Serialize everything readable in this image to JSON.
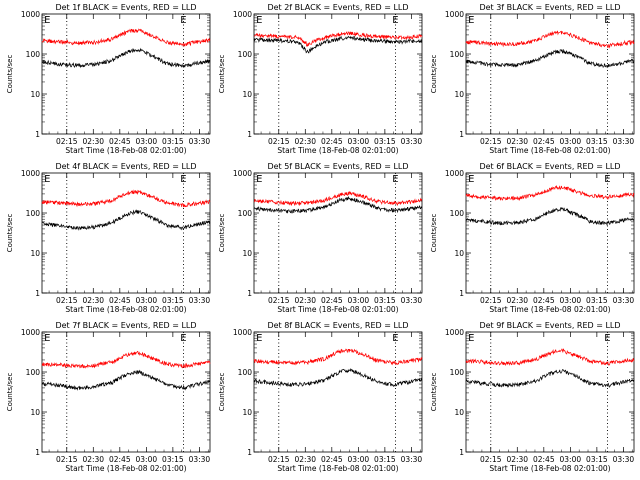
{
  "figure": {
    "colors": {
      "events": "#000000",
      "lld": "#ff0000",
      "axis": "#000000",
      "background": "#ffffff"
    }
  },
  "chart_data": [
    {
      "type": "line",
      "detector": "1f",
      "title": "Det 1f BLACK = Events, RED = LLD",
      "xlabel": "Start Time (18-Feb-08 02:01:00)",
      "ylabel": "Counts/sec",
      "x_ticks": [
        "02:15",
        "02:30",
        "02:45",
        "03:00",
        "03:15",
        "03:30"
      ],
      "y_ticks": [
        "1",
        "10",
        "100",
        "1000"
      ],
      "ylim": [
        1,
        1000
      ],
      "y_scale": "log",
      "x_range_minutes": [
        0,
        95
      ],
      "markers": [
        {
          "label": "E",
          "x_min": 3
        },
        {
          "label": "E",
          "x_min": 80
        }
      ],
      "dotted_lines_x_min": [
        14,
        80
      ],
      "series": [
        {
          "name": "LLD",
          "color": "#ff0000",
          "x_min": [
            0,
            10,
            20,
            30,
            40,
            50,
            55,
            60,
            70,
            80,
            90,
            95
          ],
          "values": [
            220,
            200,
            190,
            195,
            240,
            380,
            390,
            310,
            200,
            170,
            210,
            220
          ]
        },
        {
          "name": "Events",
          "color": "#000000",
          "x_min": [
            0,
            10,
            20,
            30,
            40,
            50,
            55,
            60,
            70,
            80,
            90,
            95
          ],
          "values": [
            65,
            55,
            52,
            55,
            70,
            120,
            125,
            100,
            58,
            50,
            62,
            68
          ]
        }
      ]
    },
    {
      "type": "line",
      "detector": "2f",
      "title": "Det 2f BLACK = Events, RED = LLD",
      "xlabel": "Start Time (18-Feb-08 02:01:00)",
      "ylabel": "Counts/sec",
      "x_ticks": [
        "02:15",
        "02:30",
        "02:45",
        "03:00",
        "03:15",
        "03:30"
      ],
      "y_ticks": [
        "1",
        "10",
        "100",
        "1000"
      ],
      "ylim": [
        1,
        1000
      ],
      "y_scale": "log",
      "x_range_minutes": [
        0,
        95
      ],
      "markers": [
        {
          "label": "E",
          "x_min": 3
        },
        {
          "label": "E",
          "x_min": 80
        }
      ],
      "dotted_lines_x_min": [
        14,
        80
      ],
      "series": [
        {
          "name": "LLD",
          "color": "#ff0000",
          "x_min": [
            0,
            10,
            20,
            25,
            30,
            40,
            50,
            55,
            60,
            70,
            80,
            90,
            95
          ],
          "values": [
            290,
            280,
            270,
            260,
            170,
            260,
            320,
            330,
            300,
            270,
            260,
            270,
            280
          ]
        },
        {
          "name": "Events",
          "color": "#000000",
          "x_min": [
            0,
            10,
            20,
            25,
            30,
            40,
            50,
            55,
            60,
            70,
            80,
            90,
            95
          ],
          "values": [
            230,
            220,
            210,
            200,
            110,
            200,
            250,
            260,
            235,
            210,
            200,
            210,
            215
          ]
        }
      ]
    },
    {
      "type": "line",
      "detector": "3f",
      "title": "Det 3f BLACK = Events, RED = LLD",
      "xlabel": "Start Time (18-Feb-08 02:01:00)",
      "ylabel": "Counts/sec",
      "x_ticks": [
        "02:15",
        "02:30",
        "02:45",
        "03:00",
        "03:15",
        "03:30"
      ],
      "y_ticks": [
        "1",
        "10",
        "100",
        "1000"
      ],
      "ylim": [
        1,
        1000
      ],
      "y_scale": "log",
      "x_range_minutes": [
        0,
        95
      ],
      "markers": [
        {
          "label": "E",
          "x_min": 3
        },
        {
          "label": "E",
          "x_min": 80
        }
      ],
      "dotted_lines_x_min": [
        14,
        80
      ],
      "series": [
        {
          "name": "LLD",
          "color": "#ff0000",
          "x_min": [
            0,
            10,
            20,
            30,
            40,
            50,
            55,
            60,
            70,
            80,
            90,
            95
          ],
          "values": [
            200,
            190,
            175,
            180,
            220,
            340,
            350,
            290,
            190,
            160,
            190,
            200
          ]
        },
        {
          "name": "Events",
          "color": "#000000",
          "x_min": [
            0,
            10,
            20,
            30,
            40,
            50,
            55,
            60,
            70,
            80,
            90,
            95
          ],
          "values": [
            65,
            58,
            52,
            55,
            68,
            110,
            118,
            95,
            58,
            50,
            62,
            68
          ]
        }
      ]
    },
    {
      "type": "line",
      "detector": "4f",
      "title": "Det 4f BLACK = Events, RED = LLD",
      "xlabel": "Start Time (18-Feb-08 02:01:00)",
      "ylabel": "Counts/sec",
      "x_ticks": [
        "02:15",
        "02:30",
        "02:45",
        "03:00",
        "03:15",
        "03:30"
      ],
      "y_ticks": [
        "1",
        "10",
        "100",
        "1000"
      ],
      "ylim": [
        1,
        1000
      ],
      "y_scale": "log",
      "x_range_minutes": [
        0,
        95
      ],
      "markers": [
        {
          "label": "E",
          "x_min": 3
        },
        {
          "label": "E",
          "x_min": 80
        }
      ],
      "dotted_lines_x_min": [
        14,
        80
      ],
      "series": [
        {
          "name": "LLD",
          "color": "#ff0000",
          "x_min": [
            0,
            10,
            20,
            30,
            40,
            50,
            55,
            60,
            70,
            80,
            90,
            95
          ],
          "values": [
            190,
            180,
            165,
            170,
            210,
            330,
            340,
            280,
            180,
            155,
            180,
            190
          ]
        },
        {
          "name": "Events",
          "color": "#000000",
          "x_min": [
            0,
            10,
            20,
            30,
            40,
            50,
            55,
            60,
            70,
            80,
            90,
            95
          ],
          "values": [
            55,
            48,
            42,
            45,
            58,
            100,
            108,
            85,
            50,
            42,
            55,
            60
          ]
        }
      ]
    },
    {
      "type": "line",
      "detector": "5f",
      "title": "Det 5f BLACK = Events, RED = LLD",
      "xlabel": "Start Time (18-Feb-08 02:01:00)",
      "ylabel": "Counts/sec",
      "x_ticks": [
        "02:15",
        "02:30",
        "02:45",
        "03:00",
        "03:15",
        "03:30"
      ],
      "y_ticks": [
        "1",
        "10",
        "100",
        "1000"
      ],
      "ylim": [
        1,
        1000
      ],
      "y_scale": "log",
      "x_range_minutes": [
        0,
        95
      ],
      "markers": [
        {
          "label": "E",
          "x_min": 3
        },
        {
          "label": "E",
          "x_min": 80
        }
      ],
      "dotted_lines_x_min": [
        14,
        80
      ],
      "series": [
        {
          "name": "LLD",
          "color": "#ff0000",
          "x_min": [
            0,
            10,
            20,
            30,
            40,
            50,
            55,
            60,
            70,
            80,
            90,
            95
          ],
          "values": [
            200,
            190,
            175,
            180,
            210,
            300,
            310,
            270,
            195,
            175,
            195,
            210
          ]
        },
        {
          "name": "Events",
          "color": "#000000",
          "x_min": [
            0,
            10,
            20,
            30,
            40,
            50,
            55,
            60,
            70,
            80,
            90,
            95
          ],
          "values": [
            130,
            120,
            110,
            115,
            140,
            220,
            230,
            195,
            130,
            115,
            130,
            140
          ]
        }
      ]
    },
    {
      "type": "line",
      "detector": "6f",
      "title": "Det 6f BLACK = Events, RED = LLD",
      "xlabel": "Start Time (18-Feb-08 02:01:00)",
      "ylabel": "Counts/sec",
      "x_ticks": [
        "02:15",
        "02:30",
        "02:45",
        "03:00",
        "03:15",
        "03:30"
      ],
      "y_ticks": [
        "1",
        "10",
        "100",
        "1000"
      ],
      "ylim": [
        1,
        1000
      ],
      "y_scale": "log",
      "x_range_minutes": [
        0,
        95
      ],
      "markers": [
        {
          "label": "E",
          "x_min": 3
        },
        {
          "label": "E",
          "x_min": 80
        }
      ],
      "dotted_lines_x_min": [
        14,
        80
      ],
      "series": [
        {
          "name": "LLD",
          "color": "#ff0000",
          "x_min": [
            0,
            10,
            20,
            30,
            40,
            50,
            55,
            60,
            70,
            80,
            90,
            95
          ],
          "values": [
            270,
            250,
            230,
            240,
            290,
            430,
            440,
            370,
            270,
            250,
            280,
            290
          ]
        },
        {
          "name": "Events",
          "color": "#000000",
          "x_min": [
            0,
            10,
            20,
            30,
            40,
            50,
            55,
            60,
            70,
            80,
            90,
            95
          ],
          "values": [
            68,
            62,
            55,
            58,
            72,
            118,
            125,
            100,
            62,
            55,
            68,
            72
          ]
        }
      ]
    },
    {
      "type": "line",
      "detector": "7f",
      "title": "Det 7f BLACK = Events, RED = LLD",
      "xlabel": "Start Time (18-Feb-08 02:01:00)",
      "ylabel": "Counts/sec",
      "x_ticks": [
        "02:15",
        "02:30",
        "02:45",
        "03:00",
        "03:15",
        "03:30"
      ],
      "y_ticks": [
        "1",
        "10",
        "100",
        "1000"
      ],
      "ylim": [
        1,
        1000
      ],
      "y_scale": "log",
      "x_range_minutes": [
        0,
        95
      ],
      "markers": [
        {
          "label": "E",
          "x_min": 3
        },
        {
          "label": "E",
          "x_min": 80
        }
      ],
      "dotted_lines_x_min": [
        14,
        80
      ],
      "series": [
        {
          "name": "LLD",
          "color": "#ff0000",
          "x_min": [
            0,
            10,
            20,
            30,
            40,
            50,
            55,
            60,
            70,
            80,
            90,
            95
          ],
          "values": [
            160,
            150,
            140,
            145,
            180,
            290,
            300,
            240,
            160,
            140,
            165,
            180
          ]
        },
        {
          "name": "Events",
          "color": "#000000",
          "x_min": [
            0,
            10,
            20,
            30,
            40,
            50,
            55,
            60,
            70,
            80,
            90,
            95
          ],
          "values": [
            52,
            46,
            40,
            43,
            55,
            95,
            100,
            80,
            48,
            40,
            52,
            58
          ]
        }
      ]
    },
    {
      "type": "line",
      "detector": "8f",
      "title": "Det 8f BLACK = Events, RED = LLD",
      "xlabel": "Start Time (18-Feb-08 02:01:00)",
      "ylabel": "Counts/sec",
      "x_ticks": [
        "02:15",
        "02:30",
        "02:45",
        "03:00",
        "03:15",
        "03:30"
      ],
      "y_ticks": [
        "1",
        "10",
        "100",
        "1000"
      ],
      "ylim": [
        1,
        1000
      ],
      "y_scale": "log",
      "x_range_minutes": [
        0,
        95
      ],
      "markers": [
        {
          "label": "E",
          "x_min": 3
        },
        {
          "label": "E",
          "x_min": 80
        }
      ],
      "dotted_lines_x_min": [
        14,
        80
      ],
      "series": [
        {
          "name": "LLD",
          "color": "#ff0000",
          "x_min": [
            0,
            10,
            20,
            30,
            40,
            50,
            55,
            60,
            70,
            80,
            90,
            95
          ],
          "values": [
            190,
            180,
            170,
            175,
            215,
            340,
            350,
            290,
            190,
            170,
            195,
            210
          ]
        },
        {
          "name": "Events",
          "color": "#000000",
          "x_min": [
            0,
            10,
            20,
            30,
            40,
            50,
            55,
            60,
            70,
            80,
            90,
            95
          ],
          "values": [
            60,
            54,
            48,
            50,
            62,
            105,
            110,
            90,
            55,
            48,
            60,
            65
          ]
        }
      ]
    },
    {
      "type": "line",
      "detector": "9f",
      "title": "Det 9f BLACK = Events, RED = LLD",
      "xlabel": "Start Time (18-Feb-08 02:01:00)",
      "ylabel": "Counts/sec",
      "x_ticks": [
        "02:15",
        "02:30",
        "02:45",
        "03:00",
        "03:15",
        "03:30"
      ],
      "y_ticks": [
        "1",
        "10",
        "100",
        "1000"
      ],
      "ylim": [
        1,
        1000
      ],
      "y_scale": "log",
      "x_range_minutes": [
        0,
        95
      ],
      "markers": [
        {
          "label": "E",
          "x_min": 3
        },
        {
          "label": "E",
          "x_min": 80
        }
      ],
      "dotted_lines_x_min": [
        14,
        80
      ],
      "series": [
        {
          "name": "LLD",
          "color": "#ff0000",
          "x_min": [
            0,
            10,
            20,
            30,
            40,
            50,
            55,
            60,
            70,
            80,
            90,
            95
          ],
          "values": [
            190,
            180,
            165,
            170,
            210,
            330,
            340,
            280,
            185,
            165,
            190,
            205
          ]
        },
        {
          "name": "Events",
          "color": "#000000",
          "x_min": [
            0,
            10,
            20,
            30,
            40,
            50,
            55,
            60,
            70,
            80,
            90,
            95
          ],
          "values": [
            58,
            52,
            46,
            48,
            60,
            100,
            106,
            86,
            52,
            46,
            58,
            63
          ]
        }
      ]
    }
  ]
}
